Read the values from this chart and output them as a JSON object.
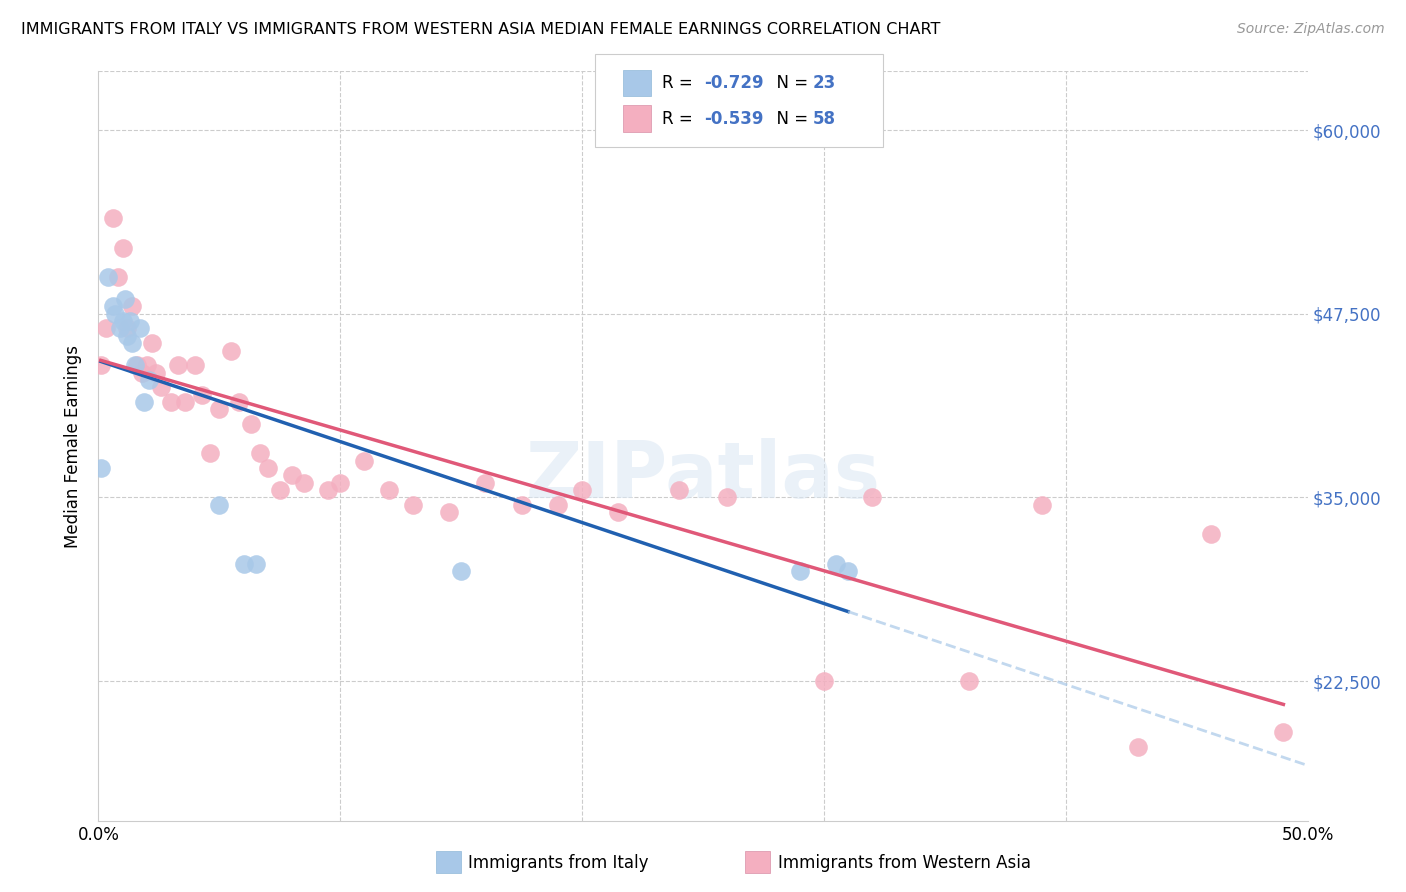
{
  "title": "IMMIGRANTS FROM ITALY VS IMMIGRANTS FROM WESTERN ASIA MEDIAN FEMALE EARNINGS CORRELATION CHART",
  "source": "Source: ZipAtlas.com",
  "ylabel": "Median Female Earnings",
  "ytick_labels": [
    "$60,000",
    "$47,500",
    "$35,000",
    "$22,500"
  ],
  "ytick_values": [
    60000,
    47500,
    35000,
    22500
  ],
  "ymin": 13000,
  "ymax": 64000,
  "xmin": 0.0,
  "xmax": 0.5,
  "color_italy": "#a8c8e8",
  "color_western_asia": "#f4afc0",
  "color_italy_line": "#2060b0",
  "color_western_asia_line": "#e05878",
  "color_dashed_line": "#a8c8e8",
  "watermark": "ZIPatlas",
  "italy_x": [
    0.001,
    0.004,
    0.006,
    0.007,
    0.009,
    0.01,
    0.011,
    0.012,
    0.013,
    0.014,
    0.015,
    0.017,
    0.019,
    0.021,
    0.05,
    0.06,
    0.065,
    0.15,
    0.29,
    0.305,
    0.31
  ],
  "italy_y": [
    37000,
    50000,
    48000,
    47500,
    46500,
    47000,
    48500,
    46000,
    47000,
    45500,
    44000,
    46500,
    41500,
    43000,
    34500,
    30500,
    30500,
    30000,
    30000,
    30500,
    30000
  ],
  "western_asia_x": [
    0.001,
    0.003,
    0.006,
    0.008,
    0.01,
    0.012,
    0.014,
    0.016,
    0.018,
    0.02,
    0.022,
    0.024,
    0.026,
    0.03,
    0.033,
    0.036,
    0.04,
    0.043,
    0.046,
    0.05,
    0.055,
    0.058,
    0.063,
    0.067,
    0.07,
    0.075,
    0.08,
    0.085,
    0.095,
    0.1,
    0.11,
    0.12,
    0.13,
    0.145,
    0.16,
    0.175,
    0.19,
    0.2,
    0.215,
    0.24,
    0.26,
    0.3,
    0.32,
    0.36,
    0.39,
    0.43,
    0.46,
    0.49
  ],
  "western_asia_y": [
    44000,
    46500,
    54000,
    50000,
    52000,
    46500,
    48000,
    44000,
    43500,
    44000,
    45500,
    43500,
    42500,
    41500,
    44000,
    41500,
    44000,
    42000,
    38000,
    41000,
    45000,
    41500,
    40000,
    38000,
    37000,
    35500,
    36500,
    36000,
    35500,
    36000,
    37500,
    35500,
    34500,
    34000,
    36000,
    34500,
    34500,
    35500,
    34000,
    35500,
    35000,
    22500,
    35000,
    22500,
    34500,
    18000,
    32500,
    19000
  ]
}
